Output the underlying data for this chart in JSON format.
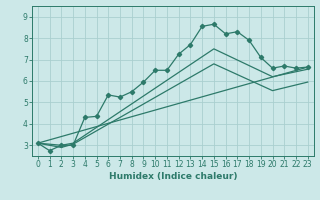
{
  "title": "",
  "xlabel": "Humidex (Indice chaleur)",
  "bg_color": "#cce8e8",
  "grid_color": "#aacfcf",
  "line_color": "#2d7a6a",
  "xlim": [
    -0.5,
    23.5
  ],
  "ylim": [
    2.5,
    9.5
  ],
  "xticks": [
    0,
    1,
    2,
    3,
    4,
    5,
    6,
    7,
    8,
    9,
    10,
    11,
    12,
    13,
    14,
    15,
    16,
    17,
    18,
    19,
    20,
    21,
    22,
    23
  ],
  "yticks": [
    3,
    4,
    5,
    6,
    7,
    8,
    9
  ],
  "series0_x": [
    0,
    1,
    2,
    3,
    4,
    5,
    6,
    7,
    8,
    9,
    10,
    11,
    12,
    13,
    14,
    15,
    16,
    17,
    18,
    19,
    20,
    21,
    22,
    23
  ],
  "series0_y": [
    3.1,
    2.75,
    3.0,
    3.0,
    4.3,
    4.35,
    5.35,
    5.25,
    5.5,
    5.95,
    6.5,
    6.5,
    7.25,
    7.7,
    8.55,
    8.65,
    8.2,
    8.3,
    7.9,
    7.1,
    6.6,
    6.7,
    6.6,
    6.65
  ],
  "series1_x": [
    0,
    23
  ],
  "series1_y": [
    3.1,
    6.65
  ],
  "series2_x": [
    0,
    2,
    3,
    15,
    20,
    23
  ],
  "series2_y": [
    3.1,
    3.0,
    3.1,
    7.5,
    6.2,
    6.55
  ],
  "series3_x": [
    0,
    2,
    3,
    15,
    20,
    23
  ],
  "series3_y": [
    3.1,
    2.9,
    3.05,
    6.8,
    5.55,
    5.95
  ]
}
